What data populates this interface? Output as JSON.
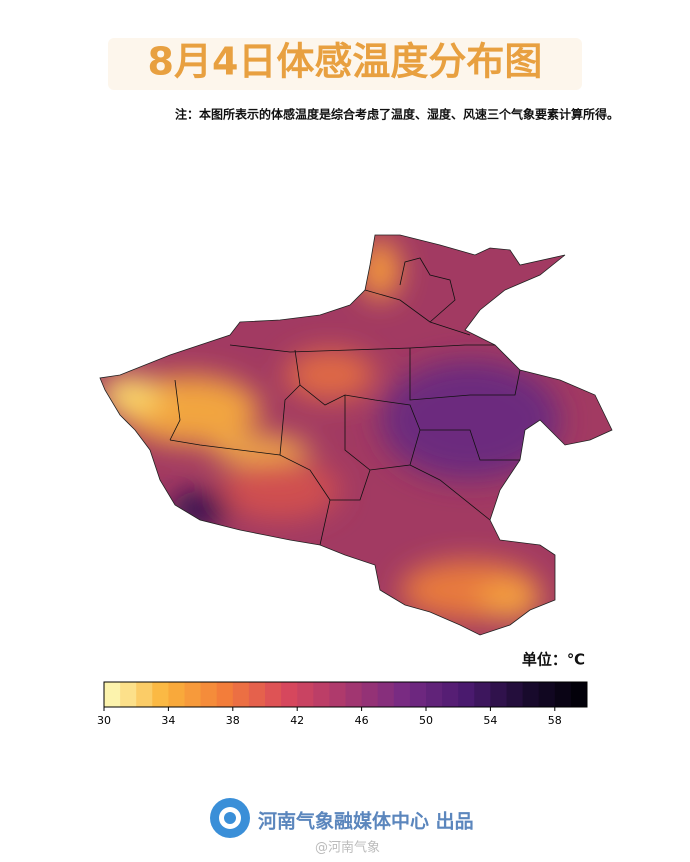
{
  "header": {
    "title": "8月4日体感温度分布图",
    "note": "注：本图所表示的体感温度是综合考虑了温度、湿度、风速三个气象要素计算所得。"
  },
  "colorbar": {
    "unit_label": "单位：℃",
    "range": [
      30,
      60
    ],
    "ticks": [
      30,
      34,
      38,
      42,
      46,
      50,
      54,
      58
    ],
    "color_stops": [
      "#fcfdbf",
      "#fbb43b",
      "#f37d3a",
      "#d9485c",
      "#a8386e",
      "#762a83",
      "#4a1a6e",
      "#1a0b2f",
      "#000004"
    ]
  },
  "footer": {
    "credit": "河南气象融媒体中心 出品",
    "watermark": "@河南气象"
  }
}
